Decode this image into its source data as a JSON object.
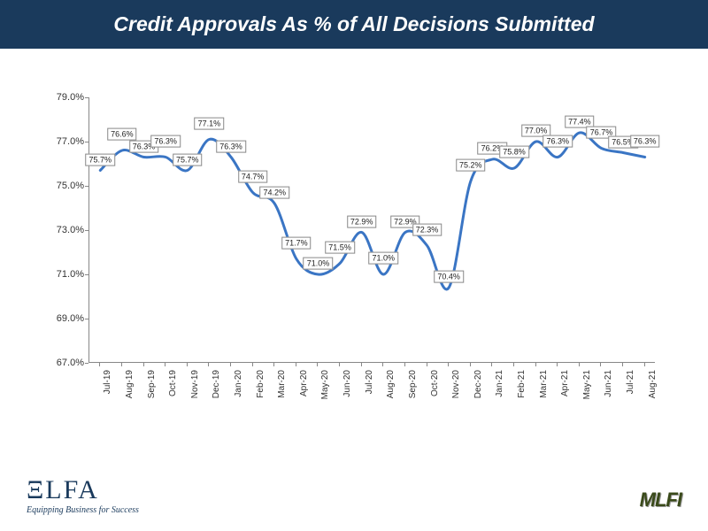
{
  "title": "Credit Approvals As % of All Decisions Submitted",
  "chart": {
    "type": "line",
    "ylim": [
      67.0,
      79.0
    ],
    "ytick_step": 2.0,
    "ytick_format_suffix": "%",
    "ytick_decimals": 1,
    "line_color": "#3a75c4",
    "line_width": 3,
    "background_color": "#ffffff",
    "axis_color": "#888888",
    "label_fontsize": 9,
    "xlabel_fontsize": 10,
    "ylabel_fontsize": 11,
    "categories": [
      "Jul-19",
      "Aug-19",
      "Sep-19",
      "Oct-19",
      "Nov-19",
      "Dec-19",
      "Jan-20",
      "Feb-20",
      "Mar-20",
      "Apr-20",
      "May-20",
      "Jun-20",
      "Jul-20",
      "Aug-20",
      "Sep-20",
      "Oct-20",
      "Nov-20",
      "Dec-20",
      "Jan-21",
      "Feb-21",
      "Mar-21",
      "Apr-21",
      "May-21",
      "Jun-21",
      "Jul-21",
      "Aug-21"
    ],
    "values": [
      75.7,
      76.6,
      76.3,
      76.3,
      75.7,
      77.1,
      76.3,
      74.7,
      74.2,
      71.7,
      71.0,
      71.5,
      72.9,
      71.0,
      72.9,
      72.3,
      70.4,
      75.2,
      76.2,
      75.8,
      77.0,
      76.3,
      77.4,
      76.7,
      76.5,
      76.3
    ],
    "value_format_suffix": "%",
    "value_decimals": 1,
    "smooth": true
  },
  "logos": {
    "left_main": "ΞLFA",
    "left_tag": "Equipping Business for Success",
    "right": "MLFI"
  }
}
